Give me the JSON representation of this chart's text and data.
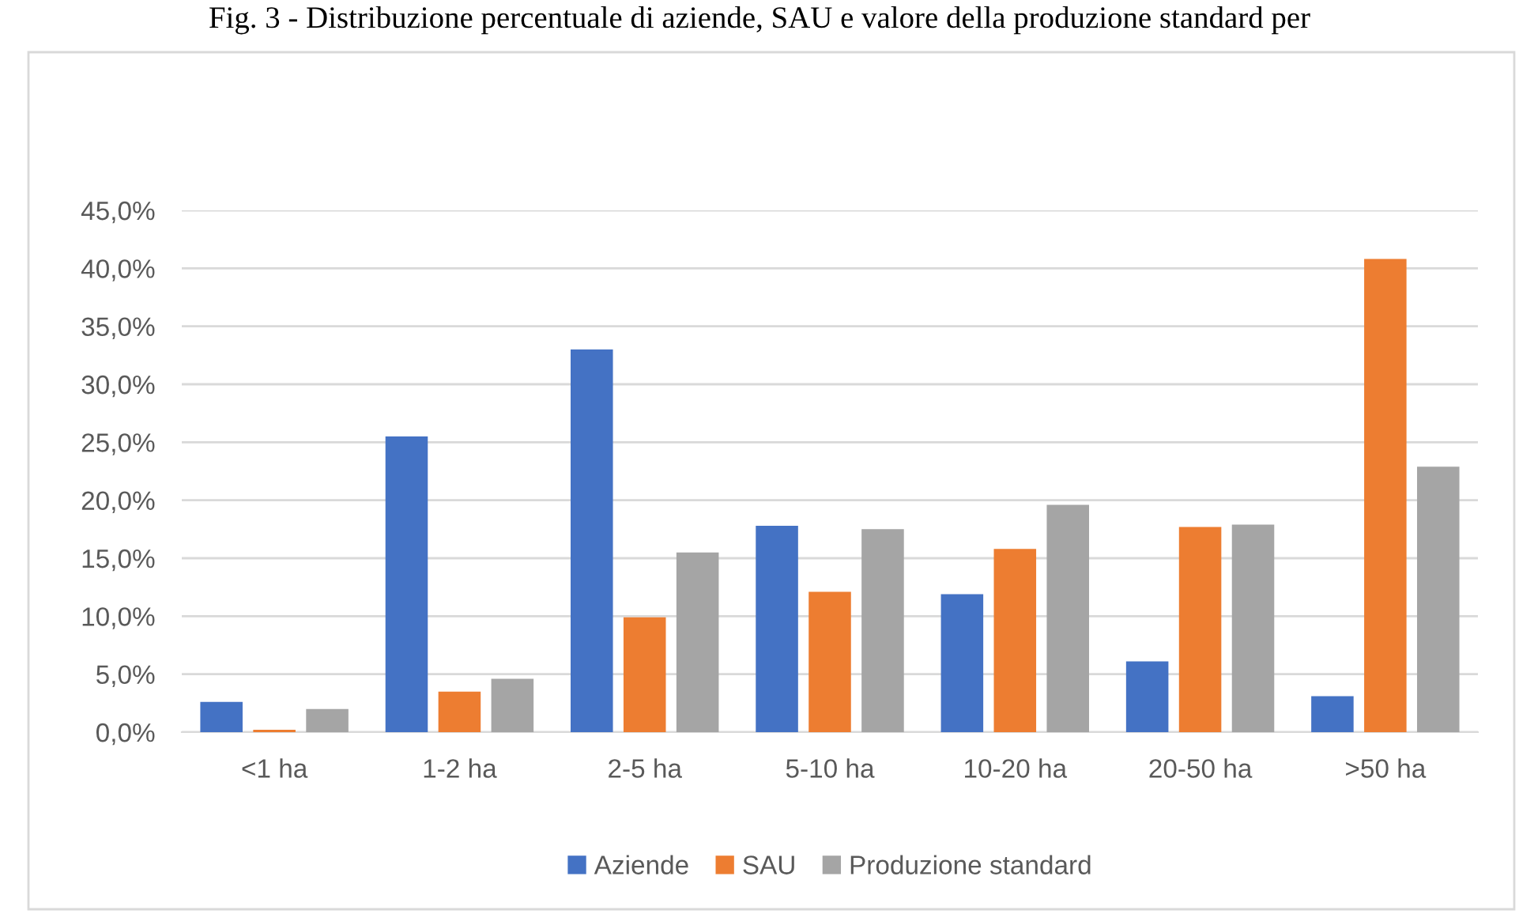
{
  "chart_data": {
    "type": "bar",
    "title": "Fig. 3 - Distribuzione percentuale di aziende, SAU e valore della produzione standard per",
    "categories": [
      "<1 ha",
      "1-2 ha",
      "2-5 ha",
      "5-10 ha",
      "10-20 ha",
      "20-50 ha",
      ">50 ha"
    ],
    "series": [
      {
        "name": "Aziende",
        "color": "#4472c4",
        "values": [
          2.6,
          25.5,
          33.0,
          17.8,
          11.9,
          6.1,
          3.1
        ]
      },
      {
        "name": "SAU",
        "color": "#ed7d31",
        "values": [
          0.2,
          3.5,
          9.9,
          12.1,
          15.8,
          17.7,
          40.8
        ]
      },
      {
        "name": "Produzione standard",
        "color": "#a5a5a5",
        "values": [
          2.0,
          4.6,
          15.5,
          17.5,
          19.6,
          17.9,
          22.9
        ]
      }
    ],
    "ylim": [
      0,
      45
    ],
    "yticks": [
      {
        "value": 0,
        "label": "0,0%"
      },
      {
        "value": 5,
        "label": "5,0%"
      },
      {
        "value": 10,
        "label": "10,0%"
      },
      {
        "value": 15,
        "label": "15,0%"
      },
      {
        "value": 20,
        "label": "20,0%"
      },
      {
        "value": 25,
        "label": "25,0%"
      },
      {
        "value": 30,
        "label": "30,0%"
      },
      {
        "value": 35,
        "label": "35,0%"
      },
      {
        "value": 40,
        "label": "40,0%"
      },
      {
        "value": 45,
        "label": "45,0%"
      }
    ],
    "grid": "y",
    "legend": "bottom"
  }
}
